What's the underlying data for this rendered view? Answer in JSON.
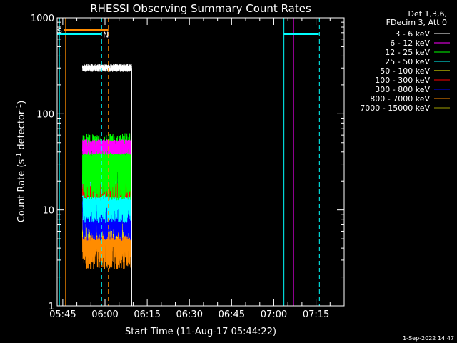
{
  "chart_data": {
    "type": "line",
    "title": "RHESSI Observing Summary Count Rates",
    "xlabel": "Start Time (11-Aug-17 05:44:22)",
    "ylabel_main": "Count Rate (s",
    "ylabel_sup1": "-1",
    "ylabel_mid": " detector",
    "ylabel_sup2": "-1",
    "ylabel_end": ")",
    "y_scale": "log",
    "ylim": [
      1,
      1000
    ],
    "xlim_minutes": [
      -2,
      100
    ],
    "x_ticks": [
      {
        "minute": 0,
        "label": "05:45"
      },
      {
        "minute": 15,
        "label": "06:00"
      },
      {
        "minute": 30,
        "label": "06:15"
      },
      {
        "minute": 45,
        "label": "06:30"
      },
      {
        "minute": 60,
        "label": "06:45"
      },
      {
        "minute": 75,
        "label": "07:00"
      },
      {
        "minute": 90,
        "label": "07:15"
      }
    ],
    "y_ticks": [
      {
        "value": 1,
        "label": "1"
      },
      {
        "value": 10,
        "label": "10"
      },
      {
        "value": 100,
        "label": "100"
      },
      {
        "value": 1000,
        "label": "1000"
      }
    ],
    "legend_header": [
      "Det 1,3,6,",
      "FDecim 3, Att 0"
    ],
    "legend": [
      {
        "label": "3 - 6 keV",
        "color": "#ffffff"
      },
      {
        "label": "6 - 12 keV",
        "color": "#ff00ff"
      },
      {
        "label": "12 - 25 keV",
        "color": "#00ff00"
      },
      {
        "label": "25 - 50 keV",
        "color": "#00ffff"
      },
      {
        "label": "50 - 100 keV",
        "color": "#ffff00"
      },
      {
        "label": "100 - 300 keV",
        "color": "#ff0000"
      },
      {
        "label": "300 - 800 keV",
        "color": "#0000ff"
      },
      {
        "label": "800 - 7000 keV",
        "color": "#ff8c00"
      },
      {
        "label": "7000 - 15000 keV",
        "color": "#a0a000"
      }
    ],
    "data_window_minutes": [
      7,
      24.5
    ],
    "series": [
      {
        "name": "3 - 6 keV",
        "color": "#ffffff",
        "level": 300,
        "jitter": 0.04
      },
      {
        "name": "6 - 12 keV",
        "color": "#ff00ff",
        "level": 45,
        "jitter": 0.08
      },
      {
        "name": "12 - 25 keV",
        "color": "#00ff00",
        "level": 28,
        "jitter": 0.35
      },
      {
        "name": "25 - 50 keV",
        "color": "#00ffff",
        "level": 13,
        "jitter": 0.25
      },
      {
        "name": "50 - 100 keV",
        "color": "#ffff00",
        "level": 8,
        "jitter": 0.2
      },
      {
        "name": "100 - 300 keV",
        "color": "#ff0000",
        "level": 16,
        "jitter": 0.08
      },
      {
        "name": "300 - 800 keV",
        "color": "#0000ff",
        "level": 8.5,
        "jitter": 0.25
      },
      {
        "name": "800 - 7000 keV",
        "color": "#ff8c00",
        "level": 4.8,
        "jitter": 0.3
      }
    ],
    "markers": [
      {
        "label": "S",
        "color": "#ff8c00",
        "minute_start": 0.5,
        "minute_end": 16.2,
        "level": 750
      },
      {
        "label": "N",
        "color": "#00ffff",
        "minute_start": -2,
        "minute_end": 13.5,
        "level": 680
      },
      {
        "label": "",
        "color": "#00ffff",
        "minute_start": 78.5,
        "minute_end": 91,
        "level": 680
      }
    ],
    "vlines": [
      {
        "minute": -1.2,
        "color": "#00ffff",
        "dashed": false
      },
      {
        "minute": 1.0,
        "color": "#ff8c00",
        "dashed": false
      },
      {
        "minute": 13.8,
        "color": "#00ffff",
        "dashed": true
      },
      {
        "minute": 16.2,
        "color": "#ff8c00",
        "dashed": true
      },
      {
        "minute": 78.6,
        "color": "#00ffff",
        "dashed": false
      },
      {
        "minute": 82.0,
        "color": "#ff00ff",
        "dashed": false
      },
      {
        "minute": 91.2,
        "color": "#00ffff",
        "dashed": true
      }
    ],
    "timestamp": "1-Sep-2022 14:47"
  }
}
